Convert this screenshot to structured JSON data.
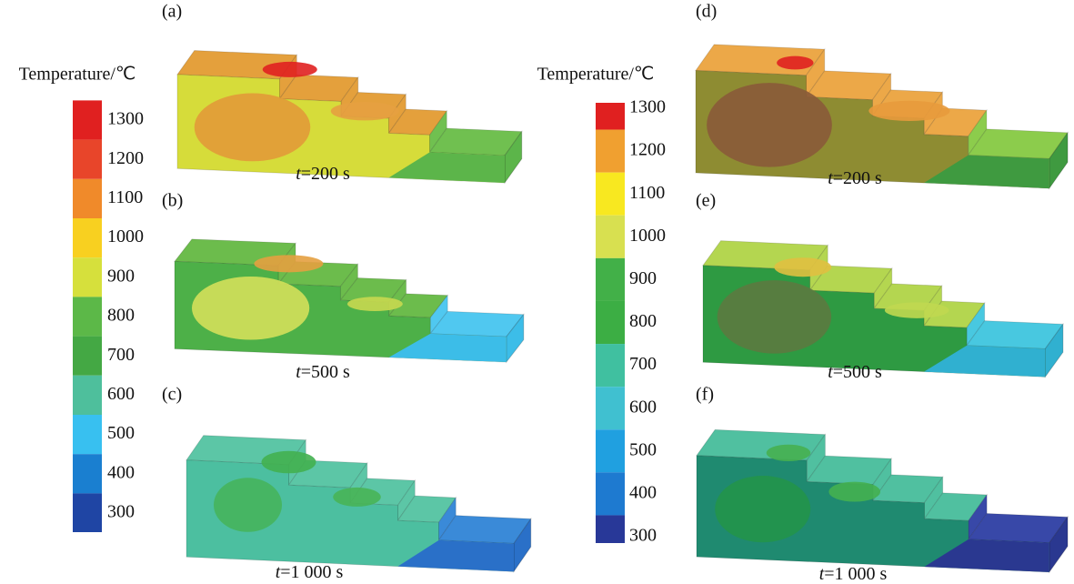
{
  "colorbars": [
    {
      "title": "Temperature/℃",
      "ticks": [
        "1300",
        "1200",
        "1100",
        "1000",
        "900",
        "800",
        "700",
        "600",
        "500",
        "400",
        "300"
      ]
    },
    {
      "title": "Temperature/℃",
      "ticks": [
        "1300",
        "1200",
        "1100",
        "1000",
        "900",
        "800",
        "700",
        "600",
        "500",
        "400",
        "300"
      ]
    }
  ],
  "panels": [
    {
      "label": "(a)",
      "caption": {
        "var": "t",
        "text": "=200 s"
      }
    },
    {
      "label": "(b)",
      "caption": {
        "var": "t",
        "text": "=500 s"
      }
    },
    {
      "label": "(c)",
      "caption": {
        "var": "t",
        "text": "=1 000 s"
      }
    },
    {
      "label": "(d)",
      "caption": {
        "var": "t",
        "text": "=200 s"
      }
    },
    {
      "label": "(e)",
      "caption": {
        "var": "t",
        "text": "=500 s"
      }
    },
    {
      "label": "(f)",
      "caption": {
        "var": "t",
        "text": "=1 000 s"
      }
    }
  ]
}
